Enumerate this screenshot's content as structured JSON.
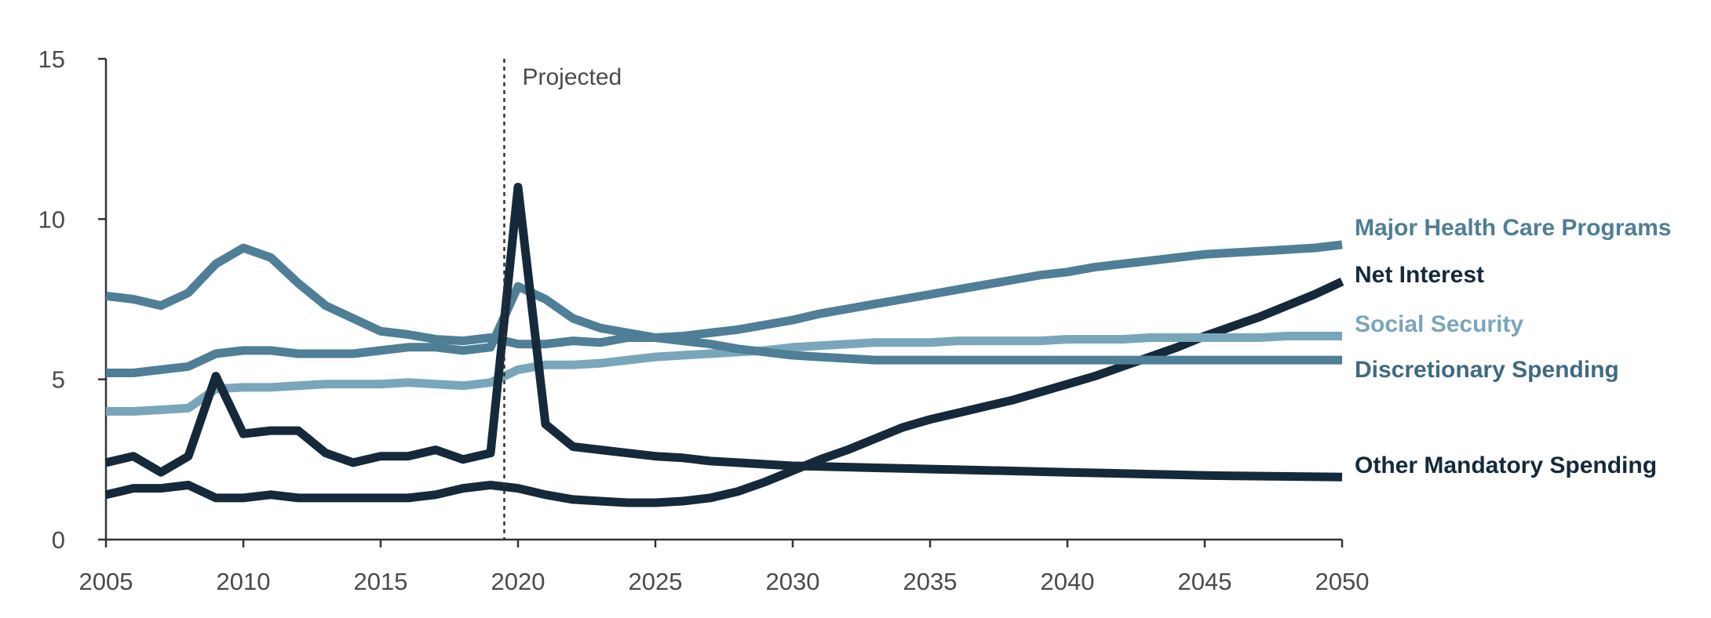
{
  "chart_data": {
    "type": "line",
    "title": "",
    "xlabel": "",
    "ylabel": "",
    "xlim": [
      2005,
      2050
    ],
    "ylim": [
      0,
      15
    ],
    "x_ticks": [
      "2005",
      "2010",
      "2015",
      "2020",
      "2025",
      "2030",
      "2035",
      "2040",
      "2045",
      "2050"
    ],
    "y_ticks": [
      "0",
      "5",
      "10",
      "15"
    ],
    "grid": false,
    "legend": "direct labels at right end of lines",
    "annotation": {
      "text": "Projected",
      "x": 2019.5
    },
    "x": [
      2005,
      2006,
      2007,
      2008,
      2009,
      2010,
      2011,
      2012,
      2013,
      2014,
      2015,
      2016,
      2017,
      2018,
      2019,
      2020,
      2021,
      2022,
      2023,
      2024,
      2025,
      2026,
      2027,
      2028,
      2029,
      2030,
      2031,
      2032,
      2033,
      2034,
      2035,
      2036,
      2037,
      2038,
      2039,
      2040,
      2041,
      2042,
      2043,
      2044,
      2045,
      2046,
      2047,
      2048,
      2049,
      2050
    ],
    "series": [
      {
        "name": "Major Health Care Programs",
        "color": "#4e7f96",
        "values": [
          5.2,
          5.2,
          5.3,
          5.4,
          5.8,
          5.9,
          5.9,
          5.8,
          5.8,
          5.8,
          5.9,
          6.0,
          6.0,
          5.9,
          6.0,
          7.9,
          7.5,
          6.9,
          6.6,
          6.45,
          6.3,
          6.35,
          6.45,
          6.55,
          6.7,
          6.85,
          7.05,
          7.2,
          7.35,
          7.5,
          7.65,
          7.8,
          7.95,
          8.1,
          8.25,
          8.35,
          8.5,
          8.6,
          8.7,
          8.8,
          8.9,
          8.95,
          9.0,
          9.05,
          9.1,
          9.2
        ]
      },
      {
        "name": "Net Interest",
        "color": "#15293a",
        "values": [
          1.4,
          1.6,
          1.6,
          1.7,
          1.3,
          1.3,
          1.4,
          1.3,
          1.3,
          1.3,
          1.3,
          1.3,
          1.4,
          1.6,
          1.7,
          1.6,
          1.4,
          1.25,
          1.2,
          1.15,
          1.15,
          1.2,
          1.3,
          1.5,
          1.8,
          2.15,
          2.5,
          2.8,
          3.15,
          3.5,
          3.75,
          3.95,
          4.15,
          4.35,
          4.6,
          4.85,
          5.1,
          5.4,
          5.7,
          6.0,
          6.35,
          6.65,
          6.95,
          7.3,
          7.65,
          8.05
        ]
      },
      {
        "name": "Social Security",
        "color": "#79a6bb",
        "values": [
          4.0,
          4.0,
          4.05,
          4.1,
          4.7,
          4.75,
          4.75,
          4.8,
          4.85,
          4.85,
          4.85,
          4.9,
          4.85,
          4.8,
          4.9,
          5.3,
          5.45,
          5.45,
          5.5,
          5.6,
          5.7,
          5.75,
          5.8,
          5.85,
          5.9,
          6.0,
          6.05,
          6.1,
          6.15,
          6.15,
          6.15,
          6.2,
          6.2,
          6.2,
          6.2,
          6.25,
          6.25,
          6.25,
          6.3,
          6.3,
          6.3,
          6.3,
          6.3,
          6.35,
          6.35,
          6.35
        ]
      },
      {
        "name": "Discretionary Spending",
        "color": "#4e7f96",
        "values": [
          7.6,
          7.5,
          7.3,
          7.7,
          8.6,
          9.1,
          8.8,
          8.0,
          7.3,
          6.9,
          6.5,
          6.4,
          6.25,
          6.2,
          6.3,
          6.1,
          6.1,
          6.2,
          6.15,
          6.3,
          6.3,
          6.2,
          6.1,
          5.95,
          5.85,
          5.75,
          5.7,
          5.65,
          5.6,
          5.6,
          5.6,
          5.6,
          5.6,
          5.6,
          5.6,
          5.6,
          5.6,
          5.6,
          5.6,
          5.6,
          5.6,
          5.6,
          5.6,
          5.6,
          5.6,
          5.6
        ]
      },
      {
        "name": "Other Mandatory Spending",
        "color": "#15293a",
        "values": [
          2.4,
          2.6,
          2.1,
          2.6,
          5.1,
          3.3,
          3.4,
          3.4,
          2.7,
          2.4,
          2.6,
          2.6,
          2.8,
          2.5,
          2.7,
          11.0,
          3.6,
          2.9,
          2.8,
          2.7,
          2.6,
          2.55,
          2.45,
          2.4,
          2.35,
          2.3,
          2.28,
          2.26,
          2.24,
          2.22,
          2.2,
          2.18,
          2.16,
          2.14,
          2.12,
          2.1,
          2.08,
          2.06,
          2.04,
          2.02,
          2.0,
          1.99,
          1.98,
          1.97,
          1.96,
          1.95
        ]
      }
    ]
  },
  "labels": {
    "major_health": "Major Health Care Programs",
    "net_interest": "Net Interest",
    "social_security": "Social Security",
    "discretionary": "Discretionary Spending",
    "other_mandatory": "Other Mandatory Spending",
    "projected": "Projected"
  }
}
